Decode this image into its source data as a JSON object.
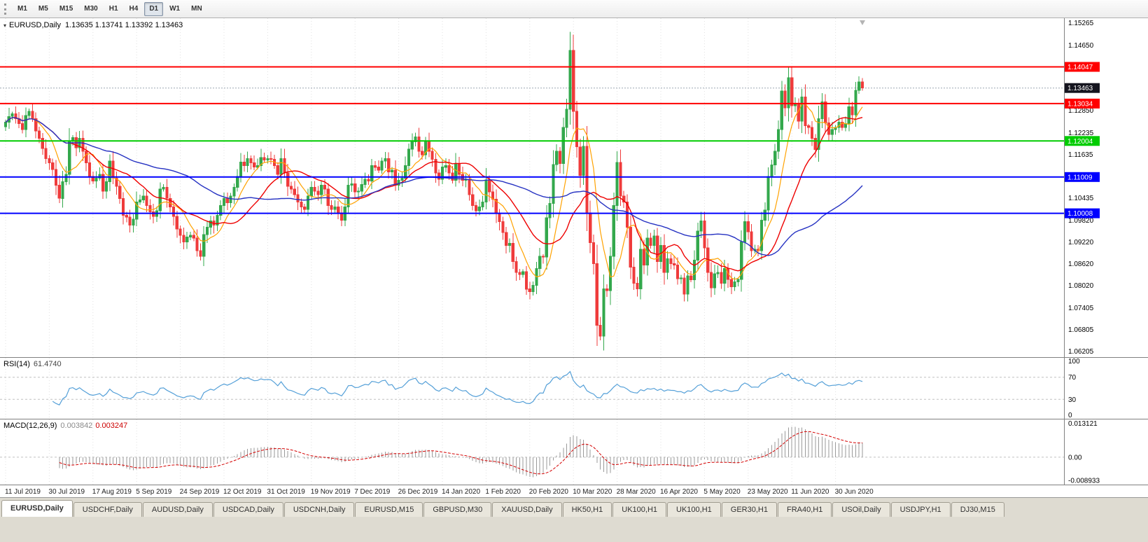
{
  "toolbar": {
    "timeframes": [
      {
        "label": "M1",
        "active": false
      },
      {
        "label": "M5",
        "active": false
      },
      {
        "label": "M15",
        "active": false
      },
      {
        "label": "M30",
        "active": false
      },
      {
        "label": "H1",
        "active": false
      },
      {
        "label": "H4",
        "active": false
      },
      {
        "label": "D1",
        "active": true
      },
      {
        "label": "W1",
        "active": false
      },
      {
        "label": "MN",
        "active": false
      }
    ]
  },
  "chart": {
    "symbol_label": "EURUSD,Daily",
    "ohlc_text": "1.13635 1.13741 1.13392 1.13463",
    "price_axis": {
      "labels": [
        "1.15265",
        "1.14650",
        "1.12850",
        "1.12235",
        "1.11635",
        "1.10435",
        "1.09820",
        "1.09220",
        "1.08620",
        "1.08020",
        "1.07405",
        "1.06805",
        "1.06205"
      ],
      "badges": [
        {
          "text": "1.14047",
          "color": "#ff0000",
          "name": "resistance-level"
        },
        {
          "text": "1.13463",
          "color": "#15151f",
          "name": "current-price"
        },
        {
          "text": "1.13034",
          "color": "#ff0000",
          "name": "resistance-level"
        },
        {
          "text": "1.12004",
          "color": "#00cc00",
          "name": "support-level"
        },
        {
          "text": "1.11009",
          "color": "#0000ff",
          "name": "support-level"
        },
        {
          "text": "1.10008",
          "color": "#0000ff",
          "name": "support-level"
        }
      ]
    }
  },
  "indicators": {
    "rsi": {
      "label": "RSI(14)",
      "value": "61.4740",
      "levels": [
        {
          "label": "100",
          "value": 100,
          "dashed": false
        },
        {
          "label": "70",
          "value": 70,
          "dashed": true
        },
        {
          "label": "30",
          "value": 30,
          "dashed": true
        },
        {
          "label": "0",
          "value": 0,
          "dashed": false
        }
      ]
    },
    "macd": {
      "label": "MACD(12,26,9)",
      "value_main": "0.003842",
      "value_signal": "0.003247",
      "axis": [
        {
          "label": "0.013121",
          "value": 0.013121
        },
        {
          "label": "0.00",
          "value": 0
        },
        {
          "label": "-0.008933",
          "value": -0.008933
        }
      ]
    }
  },
  "tabs": [
    {
      "label": "EURUSD,Daily",
      "active": true
    },
    {
      "label": "USDCHF,Daily",
      "active": false
    },
    {
      "label": "AUDUSD,Daily",
      "active": false
    },
    {
      "label": "USDCAD,Daily",
      "active": false
    },
    {
      "label": "USDCNH,Daily",
      "active": false
    },
    {
      "label": "EURUSD,M15",
      "active": false
    },
    {
      "label": "GBPUSD,M30",
      "active": false
    },
    {
      "label": "XAUUSD,Daily",
      "active": false
    },
    {
      "label": "HK50,H1",
      "active": false
    },
    {
      "label": "UK100,H1",
      "active": false
    },
    {
      "label": "UK100,H1",
      "active": false
    },
    {
      "label": "GER30,H1",
      "active": false
    },
    {
      "label": "FRA40,H1",
      "active": false
    },
    {
      "label": "USOil,Daily",
      "active": false
    },
    {
      "label": "USDJPY,H1",
      "active": false
    },
    {
      "label": "DJ30,M15",
      "active": false
    }
  ],
  "colors": {
    "background": "#ffffff",
    "bull": "#33a84c",
    "bear": "#ef3b3b",
    "grid": "#e2e2e2",
    "panel_border": "#808080",
    "axis_text": "#000000",
    "rsi_line": "#55a0d8",
    "level_line": "#c0c0c0",
    "macd_hist": "#9a9a9a",
    "macd_signal": "#d40000",
    "bid_line": "#9aa6b2"
  },
  "chart_data": {
    "type": "candlestick",
    "symbol": "EURUSD",
    "timeframe": "Daily",
    "x_tick_labels": [
      "11 Jul 2019",
      "30 Jul 2019",
      "17 Aug 2019",
      "5 Sep 2019",
      "24 Sep 2019",
      "12 Oct 2019",
      "31 Oct 2019",
      "19 Nov 2019",
      "7 Dec 2019",
      "26 Dec 2019",
      "14 Jan 2020",
      "1 Feb 2020",
      "20 Feb 2020",
      "10 Mar 2020",
      "28 Mar 2020",
      "16 Apr 2020",
      "5 May 2020",
      "23 May 2020",
      "11 Jun 2020",
      "30 Jun 2020"
    ],
    "bars_per_tick": 13,
    "first_open": 1.124,
    "closes": [
      1.1252,
      1.1268,
      1.1275,
      1.1262,
      1.1248,
      1.1232,
      1.127,
      1.1282,
      1.1262,
      1.1228,
      1.1208,
      1.118,
      1.1152,
      1.114,
      1.1122,
      1.1078,
      1.1042,
      1.1088,
      1.1108,
      1.12,
      1.121,
      1.1182,
      1.1208,
      1.1172,
      1.114,
      1.1102,
      1.109,
      1.1098,
      1.1108,
      1.1062,
      1.1088,
      1.1145,
      1.1098,
      1.1075,
      1.1042,
      1.0995,
      1.099,
      1.0968,
      1.0985,
      1.1032,
      1.1038,
      1.1048,
      1.1022,
      1.1005,
      1.0992,
      1.1008,
      1.1068,
      1.1072,
      1.1042,
      1.1018,
      1.0992,
      1.0958,
      1.094,
      1.0922,
      1.0935,
      1.094,
      1.0932,
      1.0898,
      1.0882,
      1.0942,
      1.0962,
      1.098,
      1.0968,
      1.0995,
      1.1022,
      1.1042,
      1.103,
      1.1048,
      1.1072,
      1.1102,
      1.1142,
      1.1132,
      1.1152,
      1.114,
      1.1128,
      1.1132,
      1.1155,
      1.1148,
      1.1152,
      1.115,
      1.1132,
      1.1108,
      1.1152,
      1.1112,
      1.1075,
      1.1068,
      1.1052,
      1.1032,
      1.1018,
      1.1012,
      1.1048,
      1.1072,
      1.1062,
      1.1052,
      1.1078,
      1.1068,
      1.1022,
      1.1012,
      1.1018,
      1.1002,
      1.0982,
      1.1018,
      1.1078,
      1.1082,
      1.106,
      1.1062,
      1.108,
      1.1095,
      1.109,
      1.1132,
      1.1128,
      1.112,
      1.1145,
      1.1152,
      1.1115,
      1.112,
      1.1078,
      1.1092,
      1.1098,
      1.1132,
      1.1178,
      1.1198,
      1.1212,
      1.1172,
      1.1162,
      1.1198,
      1.1172,
      1.115,
      1.1112,
      1.1095,
      1.1128,
      1.1132,
      1.1112,
      1.1092,
      1.1138,
      1.1108,
      1.1092,
      1.1095,
      1.1052,
      1.1022,
      1.1008,
      1.1018,
      1.1032,
      1.1093,
      1.106,
      1.104,
      1.1,
      1.0978,
      1.0948,
      1.0912,
      1.0918,
      1.0868,
      1.0838,
      1.0832,
      1.084,
      1.0792,
      1.0785,
      1.0802,
      1.0848,
      1.0882,
      1.088,
      1.0988,
      1.1028,
      1.1135,
      1.1172,
      1.1138,
      1.1238,
      1.1288,
      1.145,
      1.1282,
      1.1184,
      1.1105,
      1.1185,
      1.1002,
      1.092,
      1.0862,
      1.0692,
      1.0662,
      1.0792,
      1.0788,
      1.0882,
      1.1022,
      1.1141,
      1.1048,
      1.1032,
      1.0962,
      1.0852,
      1.0808,
      1.0792,
      1.0902,
      1.0858,
      1.0932,
      1.0912,
      1.0938,
      1.0868,
      1.0912,
      1.0838,
      1.0875,
      1.0862,
      1.0858,
      1.082,
      1.0822,
      1.0778,
      1.0828,
      1.0818,
      1.0872,
      1.0952,
      1.098,
      1.0905,
      1.0838,
      1.0795,
      1.0834,
      1.0838,
      1.0808,
      1.0848,
      1.0818,
      1.0798,
      1.0812,
      1.0818,
      1.0922,
      1.0978,
      1.095,
      1.0898,
      1.0902,
      1.0898,
      1.0982,
      1.101,
      1.1102,
      1.1134,
      1.1172,
      1.1232,
      1.1338,
      1.1292,
      1.1375,
      1.1298,
      1.1302,
      1.1255,
      1.1322,
      1.1242,
      1.1238,
      1.1208,
      1.1177,
      1.1262,
      1.1308,
      1.125,
      1.1218,
      1.1232,
      1.1238,
      1.1252,
      1.1238,
      1.1248,
      1.1295,
      1.1272,
      1.134,
      1.1363,
      1.1346
    ],
    "last_ohlc": [
      1.13635,
      1.13741,
      1.13392,
      1.13463
    ],
    "current_price": 1.13463,
    "y_range": [
      1.0606,
      1.1537
    ],
    "macd_range": [
      -0.0098,
      0.0138
    ],
    "overlays": [
      {
        "name": "ma-fast",
        "type": "sma",
        "period": 8,
        "color": "#ffa200",
        "width": 1.2
      },
      {
        "name": "ma-mid",
        "type": "sma",
        "period": 20,
        "color": "#ee0000",
        "width": 1.4
      },
      {
        "name": "ma-slow",
        "type": "sma",
        "period": 55,
        "color": "#2632c2",
        "width": 1.4
      }
    ],
    "hlines": [
      {
        "price": 1.14047,
        "color": "#ff0000"
      },
      {
        "price": 1.13034,
        "color": "#ff0000"
      },
      {
        "price": 1.12004,
        "color": "#00cc00"
      },
      {
        "price": 1.11009,
        "color": "#0000ff"
      },
      {
        "price": 1.10008,
        "color": "#0000ff"
      }
    ]
  }
}
